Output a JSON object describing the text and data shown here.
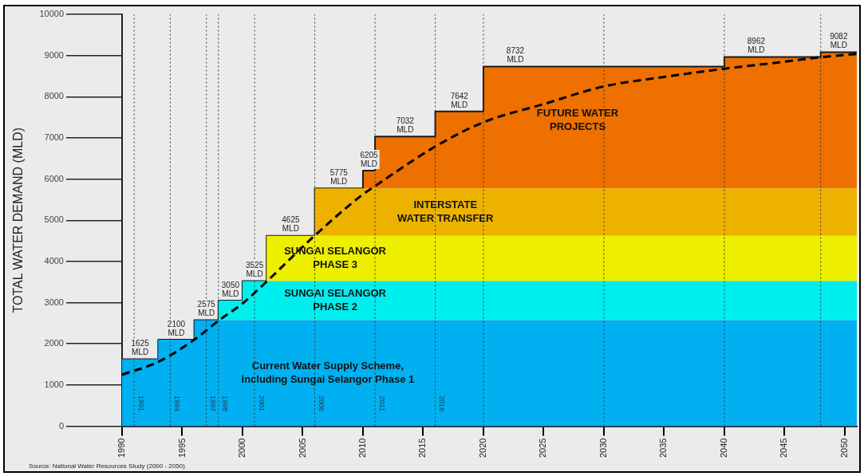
{
  "chart_data": {
    "type": "step",
    "stacked": true,
    "ylabel": "TOTAL WATER DEMAND (MLD)",
    "x": [
      1990,
      1993,
      1996,
      1998,
      2000,
      2002,
      2006,
      2010,
      2011,
      2016,
      2020,
      2040,
      2048,
      2051
    ],
    "series": [
      {
        "type": "line",
        "line_style": "dashed",
        "color": "#000000",
        "x": [
          1990,
          1993,
          1996,
          1998,
          2000,
          2002,
          2006,
          2010,
          2011,
          2016,
          2020,
          2025,
          2030,
          2035,
          2040,
          2045,
          2048,
          2051
        ],
        "values": [
          1250,
          1560,
          2100,
          2560,
          2980,
          3510,
          4630,
          5630,
          5830,
          6790,
          7380,
          7820,
          8250,
          8480,
          8680,
          8850,
          8960,
          9040
        ]
      },
      {
        "type": "area",
        "name": "Current Water Supply Scheme, including Sungai Selangor Phase 1",
        "color": "#00b0f0",
        "values": [
          1625,
          2100,
          2575,
          2575,
          2575,
          2575,
          2575,
          2575,
          2575,
          2575,
          2575,
          2575,
          2575,
          2575
        ]
      },
      {
        "type": "area",
        "name": "SUNGAI SELANGOR PHASE 2",
        "color": "#00eeee",
        "values": [
          0,
          0,
          0,
          475,
          950,
          950,
          950,
          950,
          950,
          950,
          950,
          950,
          950,
          950
        ]
      },
      {
        "type": "area",
        "name": "SUNGAI SELANGOR PHASE 3",
        "color": "#eeee00",
        "values": [
          0,
          0,
          0,
          0,
          0,
          1100,
          1100,
          1100,
          1100,
          1100,
          1100,
          1100,
          1100,
          1100
        ]
      },
      {
        "type": "area",
        "name": "INTERSTATE WATER TRANSFER",
        "color": "#edb200",
        "values": [
          0,
          0,
          0,
          0,
          0,
          0,
          1150,
          1150,
          1150,
          1150,
          1150,
          1150,
          1150,
          1150
        ]
      },
      {
        "type": "area",
        "name": "FUTURE WATER PROJECTS",
        "color": "#ed7000",
        "values": [
          0,
          0,
          0,
          0,
          0,
          0,
          0,
          430,
          1257,
          1867,
          2957,
          3187,
          3307,
          3307
        ]
      }
    ],
    "xlim": [
      1990,
      2051
    ],
    "xticks": [
      1990,
      1995,
      2000,
      2005,
      2010,
      2015,
      2020,
      2025,
      2030,
      2035,
      2040,
      2045,
      2050
    ],
    "ylim": [
      0,
      10000
    ],
    "yticks": [
      0,
      1000,
      2000,
      3000,
      4000,
      5000,
      6000,
      7000,
      8000,
      9000,
      10000
    ],
    "totals": [
      "1625 MLD",
      "2100 MLD",
      "2575 MLD",
      "3050 MLD",
      "3525 MLD",
      "4625 MLD",
      "5775 MLD",
      "6205 MLD",
      "7032 MLD",
      "7642 MLD",
      "8732 MLD",
      "8962 MLD",
      "9082 MLD",
      null
    ],
    "grid": false,
    "legend": false,
    "marker": "none",
    "ref_lines": [
      {
        "axis": "x",
        "value": 1991,
        "label": "1991",
        "line_style": "dotted"
      },
      {
        "axis": "x",
        "value": 1994,
        "label": "1994",
        "line_style": "dotted"
      },
      {
        "axis": "x",
        "value": 1997,
        "label": "1997",
        "line_style": "dotted"
      },
      {
        "axis": "x",
        "value": 1998,
        "label": "1998",
        "line_style": "dotted"
      },
      {
        "axis": "x",
        "value": 2001,
        "label": "2001",
        "line_style": "dotted"
      },
      {
        "axis": "x",
        "value": 2006,
        "label": "2006",
        "line_style": "dotted"
      },
      {
        "axis": "x",
        "value": 2011,
        "label": "2011",
        "line_style": "dotted"
      },
      {
        "axis": "x",
        "value": 2016,
        "label": "2016",
        "line_style": "dotted"
      },
      {
        "axis": "x",
        "value": 2020,
        "line_style": "dotted"
      },
      {
        "axis": "x",
        "value": 2030,
        "line_style": "dotted"
      },
      {
        "axis": "x",
        "value": 2040,
        "line_style": "dotted"
      },
      {
        "axis": "x",
        "value": 2048,
        "line_style": "dotted"
      }
    ],
    "annotations": [
      "Source: National Water Resources Study (2000 - 2050)"
    ]
  }
}
